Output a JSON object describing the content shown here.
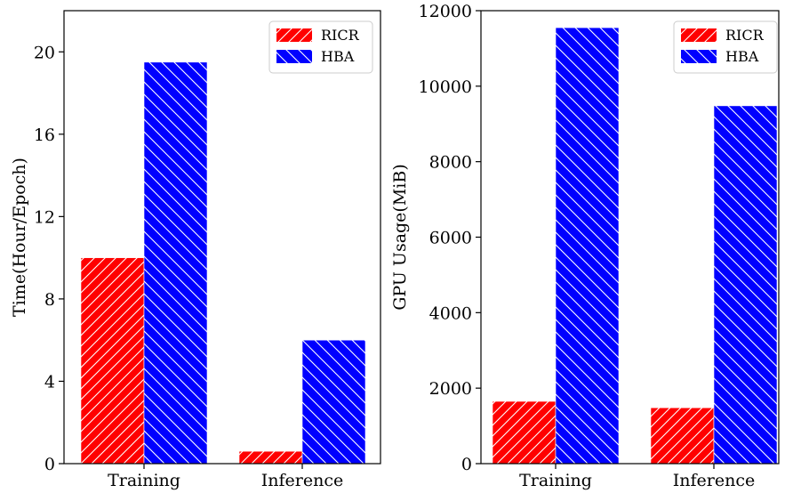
{
  "chart_data": [
    {
      "type": "bar",
      "categories": [
        "Training",
        "Inference"
      ],
      "series": [
        {
          "name": "RICR",
          "values": [
            10.0,
            0.6
          ]
        },
        {
          "name": "HBA",
          "values": [
            19.5,
            6.0
          ]
        }
      ],
      "ylabel": "Time(Hour/Epoch)",
      "ylim": [
        0,
        22
      ],
      "yticks": [
        0,
        4,
        8,
        12,
        16,
        20
      ],
      "grid": false,
      "legend": "top-right"
    },
    {
      "type": "bar",
      "categories": [
        "Training",
        "Inference"
      ],
      "series": [
        {
          "name": "RICR",
          "values": [
            1650,
            1480
          ]
        },
        {
          "name": "HBA",
          "values": [
            11550,
            9480
          ]
        }
      ],
      "ylabel": "GPU Usage(MiB)",
      "ylim": [
        0,
        12000
      ],
      "yticks": [
        0,
        2000,
        4000,
        6000,
        8000,
        10000,
        12000
      ],
      "grid": false,
      "legend": "top-right"
    }
  ],
  "colors": {
    "RICR": "#ff0000",
    "HBA": "#0000ff",
    "hatch": "#ffffff"
  }
}
